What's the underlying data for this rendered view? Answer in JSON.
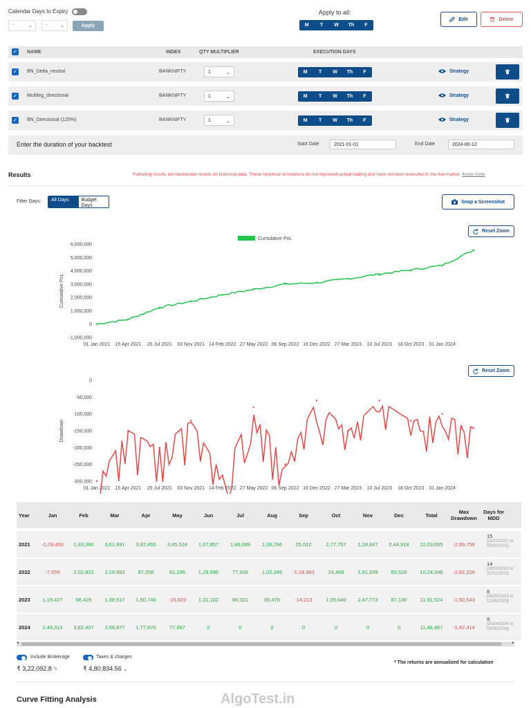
{
  "top": {
    "calendar_days_label": "Calendar Days to Expiry",
    "calendar_toggle_on": false,
    "select1_value": "--",
    "select2_value": "--",
    "apply_label": "Apply",
    "apply_all_label": "Apply to all:",
    "edit_label": "Edit",
    "delete_label": "Delete"
  },
  "days": [
    "M",
    "T",
    "W",
    "Th",
    "F"
  ],
  "table": {
    "headers": {
      "name": "NAME",
      "index": "INDEX",
      "qty": "QTY MULTIPLIER",
      "exec": "EXECUTION DAYS"
    },
    "rows": [
      {
        "name": "BN_Delta_neutral",
        "index": "BANKNIFTY",
        "qty": "1",
        "strategy_label": "Strategy"
      },
      {
        "name": "Multileg_directional",
        "index": "BANKNIFTY",
        "qty": "1",
        "strategy_label": "Strategy"
      },
      {
        "name": "BN_Directional (125%)",
        "index": "BANKNIFTY",
        "qty": "1",
        "strategy_label": "Strategy"
      }
    ]
  },
  "duration": {
    "prompt": "Enter the duration of your backtest",
    "start_label": "Start Date",
    "start_value": "2021-01-01",
    "end_label": "End Date",
    "end_value": "2024-06-12"
  },
  "results": {
    "title": "Results",
    "disclaimer": "Following results are backtested results on historical data. These historical simulations do not represent actual trading and have not been executed in the live market.",
    "know_more": "Know more",
    "filter_label": "Filter Days:",
    "filter_all": "All Days",
    "filter_budget": "Budget Days",
    "snap_label": "Snap a Screenshot",
    "reset_zoom": "Reset Zoom"
  },
  "colors": {
    "accent": "#0e4d8a",
    "pnl_line": "#21c44d",
    "drawdown_line": "#e04848",
    "positive": "#26a641",
    "negative": "#e04848"
  },
  "chart_data": [
    {
      "type": "line",
      "series": [
        {
          "name": "Cumulative PnL"
        }
      ],
      "x": [
        "01 Jan 2021",
        "15 Apr 2021",
        "26 Jul 2021",
        "03 Nov 2021",
        "14 Feb 2022",
        "27 May 2022",
        "06 Sep 2022",
        "16 Dec 2022",
        "27 Mar 2023",
        "10 Jul 2023",
        "18 Oct 2023",
        "31 Jan 2024",
        "12 Jun 2024"
      ],
      "y": [
        0,
        350000,
        1250000,
        1700000,
        2200000,
        2600000,
        3000000,
        3100000,
        3400000,
        3750000,
        4050000,
        4400000,
        5550000
      ],
      "xticks": [
        "01 Jan 2021",
        "15 Apr 2021",
        "26 Jul 2021",
        "03 Nov 2021",
        "14 Feb 2022",
        "27 May 2022",
        "06 Sep 2022",
        "16 Dec 2022",
        "27 Mar 2023",
        "10 Jul 2023",
        "18 Oct 2023",
        "31 Jan 2024"
      ],
      "yticks": [
        "-1,000,000",
        "0",
        "1,000,000",
        "2,000,000",
        "3,000,000",
        "4,000,000",
        "5,000,000",
        "6,000,000"
      ],
      "ylabel": "Cumulative PnL",
      "ylim": [
        -1000000,
        6000000
      ],
      "legend": "top-center",
      "grid": false
    },
    {
      "type": "line",
      "series": [
        {
          "name": "Drawdown"
        }
      ],
      "x": [
        "01 Jan 2021",
        "15 Apr 2021",
        "26 Jul 2021",
        "03 Nov 2021",
        "14 Feb 2022",
        "27 May 2022",
        "06 Sep 2022",
        "16 Dec 2022",
        "27 Mar 2023",
        "10 Jul 2023",
        "18 Oct 2023",
        "31 Jan 2024",
        "12 Jun 2024"
      ],
      "y": [
        -299759,
        -150000,
        -200000,
        -120000,
        -282226,
        -80000,
        -250000,
        -60000,
        -150543,
        -60000,
        -120000,
        -100000,
        -142414
      ],
      "xticks": [
        "01 Jan 2021",
        "15 Apr 2021",
        "26 Jul 2021",
        "03 Nov 2021",
        "14 Feb 2022",
        "27 May 2022",
        "06 Sep 2022",
        "16 Dec 2022",
        "27 Mar 2023",
        "10 Jul 2023",
        "18 Oct 2023",
        "31 Jan 2024"
      ],
      "yticks": [
        "0",
        "-50,000",
        "-100,000",
        "-150,000",
        "-200,000",
        "-250,000",
        "-300,000"
      ],
      "ylabel": "Drawdown",
      "ylim": [
        -300000,
        0
      ],
      "grid": false
    }
  ],
  "yearly": {
    "headers": [
      "Year",
      "Jan",
      "Feb",
      "Mar",
      "Apr",
      "May",
      "Jun",
      "Jul",
      "Aug",
      "Sep",
      "Oct",
      "Nov",
      "Dec",
      "Total",
      "Max Drawdown",
      "Days for MDD"
    ],
    "rows": [
      {
        "year": "2021",
        "vals": [
          "-1,03,453",
          "1,33,390",
          "3,61,891",
          "3,92,455",
          "3,45,524",
          "1,07,857",
          "1,86,099",
          "1,06,766",
          "25,012",
          "2,77,757",
          "1,24,847",
          "2,44,918",
          "22,03,065",
          "-2,99,759"
        ],
        "mdd_days": "15",
        "mdd_range": "[22/01/2021 to 05/02/2021]"
      },
      {
        "year": "2022",
        "vals": [
          "-7,559",
          "2,02,822",
          "2,19,993",
          "87,558",
          "61,296",
          "1,29,596",
          "77,339",
          "1,02,349",
          "-1,18,983",
          "24,468",
          "1,61,939",
          "83,528",
          "10,24,348",
          "-2,82,226"
        ],
        "mdd_days": "14",
        "mdd_range": "[18/01/2022 to 31/01/2022]"
      },
      {
        "year": "2023",
        "vals": [
          "1,19,427",
          "56,429",
          "1,38,517",
          "1,50,740",
          "-15,823",
          "1,31,102",
          "89,321",
          "95,479",
          "-14,213",
          "1,05,640",
          "2,47,773",
          "87,130",
          "11,91,524",
          "-1,50,543"
        ],
        "mdd_days": "8",
        "mdd_range": "[05/05/2023 to 12/05/2023]"
      },
      {
        "year": "2024",
        "vals": [
          "2,49,313",
          "3,82,407",
          "2,58,877",
          "1,77,870",
          "77,997",
          "0",
          "0",
          "0",
          "0",
          "0",
          "0",
          "0",
          "11,46,467",
          "-1,42,414"
        ],
        "mdd_days": "9",
        "mdd_range": "[25/04/2024 to 03/05/2024]"
      }
    ]
  },
  "footer": {
    "include_brokerage": "Include Brokerage",
    "taxes": "Taxes & charges",
    "brokerage_amount": "₹ 3,22,092.8",
    "taxes_amount": "₹ 4,80,834.56",
    "note": "* The returns are annualized for calculation",
    "curve_fitting": "Curve Fitting Analysis",
    "watermark": "AlgoTest.in"
  }
}
